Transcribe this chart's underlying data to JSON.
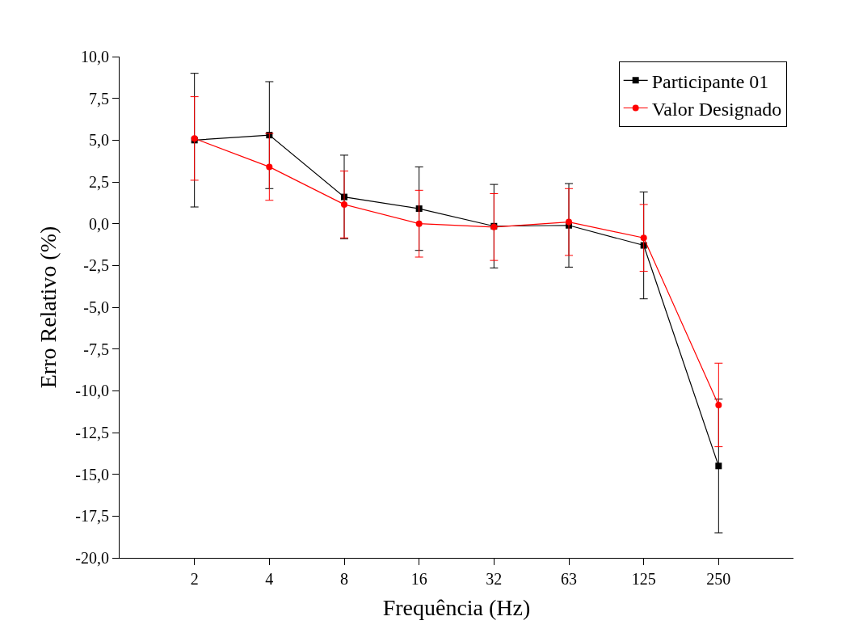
{
  "chart_data": {
    "type": "line",
    "xlabel": "Frequência (Hz)",
    "ylabel": "Erro Relativo (%)",
    "categories": [
      "2",
      "4",
      "8",
      "16",
      "32",
      "63",
      "125",
      "250"
    ],
    "series": [
      {
        "name": "Participante 01",
        "color": "#000000",
        "marker": "square",
        "values": [
          5.0,
          5.3,
          1.6,
          0.9,
          -0.15,
          -0.1,
          -1.3,
          -14.5
        ],
        "errors": [
          4.0,
          3.2,
          2.5,
          2.5,
          2.5,
          2.5,
          3.2,
          4.0
        ]
      },
      {
        "name": "Valor Designado",
        "color": "#ff0000",
        "marker": "circle",
        "values": [
          5.1,
          3.4,
          1.15,
          0.0,
          -0.2,
          0.1,
          -0.85,
          -10.85
        ],
        "errors": [
          2.5,
          2.0,
          2.0,
          2.0,
          2.0,
          2.0,
          2.0,
          2.5
        ]
      }
    ],
    "ylim": [
      -20,
      10
    ],
    "yticks": [
      {
        "value": -20,
        "label": "-20,0"
      },
      {
        "value": -17.5,
        "label": "-17,5"
      },
      {
        "value": -15,
        "label": "-15,0"
      },
      {
        "value": -12.5,
        "label": "-12,5"
      },
      {
        "value": -10,
        "label": "-10,0"
      },
      {
        "value": -7.5,
        "label": "-7,5"
      },
      {
        "value": -5,
        "label": "-5,0"
      },
      {
        "value": -2.5,
        "label": "-2,5"
      },
      {
        "value": 0,
        "label": "0,0"
      },
      {
        "value": 2.5,
        "label": "2,5"
      },
      {
        "value": 5,
        "label": "5,0"
      },
      {
        "value": 7.5,
        "label": "7,5"
      },
      {
        "value": 10,
        "label": "10,0"
      }
    ],
    "grid": false,
    "legend": "top right",
    "line_style": "solid"
  }
}
